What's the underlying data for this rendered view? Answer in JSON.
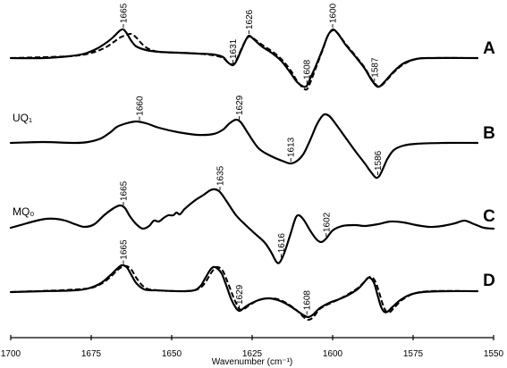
{
  "chart_data": {
    "type": "line",
    "xlabel": "Wavenumber (cm⁻¹)",
    "xlim": [
      1700,
      1550
    ],
    "xticks": [
      1700,
      1675,
      1650,
      1625,
      1600,
      1575,
      1550
    ],
    "grid": false,
    "line_color": "#000000",
    "series": [
      {
        "name": "A",
        "solid": [
          [
            1700,
            0
          ],
          [
            1690,
            0
          ],
          [
            1682,
            0.2
          ],
          [
            1677,
            0.5
          ],
          [
            1673,
            1.1
          ],
          [
            1670,
            1.8
          ],
          [
            1668,
            2.4
          ],
          [
            1666,
            3.1
          ],
          [
            1665,
            3.2
          ],
          [
            1664,
            2.8
          ],
          [
            1662.5,
            1.9
          ],
          [
            1661,
            1.3
          ],
          [
            1658,
            0.9
          ],
          [
            1654,
            0.7
          ],
          [
            1648,
            0.6
          ],
          [
            1642,
            0.5
          ],
          [
            1637,
            0.4
          ],
          [
            1634,
            0.1
          ],
          [
            1632.5,
            -0.5
          ],
          [
            1631,
            -0.8
          ],
          [
            1630,
            -0.4
          ],
          [
            1628.5,
            0.8
          ],
          [
            1627,
            2.0
          ],
          [
            1626,
            2.5
          ],
          [
            1624.5,
            2.1
          ],
          [
            1622,
            1.3
          ],
          [
            1619,
            0.6
          ],
          [
            1616,
            -0.3
          ],
          [
            1613,
            -1.7
          ],
          [
            1611,
            -2.7
          ],
          [
            1609,
            -3.2
          ],
          [
            1608,
            -3.1
          ],
          [
            1607,
            -2.3
          ],
          [
            1605,
            -0.7
          ],
          [
            1603,
            1.1
          ],
          [
            1601.5,
            2.5
          ],
          [
            1600,
            3.2
          ],
          [
            1598.5,
            2.8
          ],
          [
            1596,
            1.5
          ],
          [
            1593,
            0.2
          ],
          [
            1590,
            -1.2
          ],
          [
            1588,
            -2.4
          ],
          [
            1586.5,
            -3.1
          ],
          [
            1585.5,
            -3.2
          ],
          [
            1584,
            -2.7
          ],
          [
            1581,
            -1.5
          ],
          [
            1578,
            -0.6
          ],
          [
            1574,
            -0.1
          ],
          [
            1570,
            0
          ],
          [
            1555,
            0
          ]
        ],
        "dashed": [
          [
            1700,
            0
          ],
          [
            1682,
            0.2
          ],
          [
            1677,
            0.4
          ],
          [
            1673,
            0.8
          ],
          [
            1670,
            1.3
          ],
          [
            1668,
            1.8
          ],
          [
            1666,
            2.3
          ],
          [
            1664,
            2.6
          ],
          [
            1662.5,
            2.7
          ],
          [
            1661,
            2.3
          ],
          [
            1659,
            1.5
          ],
          [
            1657,
            1.0
          ],
          [
            1654,
            0.7
          ],
          [
            1648,
            0.6
          ],
          [
            1642,
            0.5
          ],
          [
            1637,
            0.3
          ],
          [
            1634,
            0.0
          ],
          [
            1632.5,
            -0.5
          ],
          [
            1631,
            -0.7
          ],
          [
            1630,
            -0.3
          ],
          [
            1628.5,
            0.9
          ],
          [
            1627,
            2.0
          ],
          [
            1626,
            2.4
          ],
          [
            1625,
            2.3
          ],
          [
            1622,
            1.5
          ],
          [
            1619,
            0.8
          ],
          [
            1616,
            -0.1
          ],
          [
            1613,
            -1.4
          ],
          [
            1611,
            -2.6
          ],
          [
            1609,
            -3.4
          ],
          [
            1608,
            -3.5
          ],
          [
            1607,
            -2.8
          ],
          [
            1605,
            -0.9
          ],
          [
            1603,
            1.0
          ],
          [
            1601.5,
            2.5
          ],
          [
            1600,
            3.1
          ],
          [
            1598.5,
            2.8
          ],
          [
            1596,
            1.6
          ],
          [
            1593,
            0.3
          ],
          [
            1590,
            -1.1
          ],
          [
            1588,
            -2.3
          ],
          [
            1586.5,
            -3.0
          ],
          [
            1585.5,
            -3.2
          ],
          [
            1584,
            -2.8
          ],
          [
            1581,
            -1.6
          ],
          [
            1578,
            -0.7
          ],
          [
            1574,
            -0.1
          ],
          [
            1570,
            0
          ],
          [
            1555,
            0
          ]
        ],
        "peak_labels": [
          1665,
          1631,
          1626,
          1608,
          1600,
          1587
        ]
      },
      {
        "name": "B",
        "sample_label": "UQ₁",
        "solid": [
          [
            1700,
            0
          ],
          [
            1690,
            0.1
          ],
          [
            1680,
            0
          ],
          [
            1676,
            0.1
          ],
          [
            1672,
            0.5
          ],
          [
            1669,
            1.2
          ],
          [
            1667,
            1.8
          ],
          [
            1664,
            2.2
          ],
          [
            1661,
            2.4
          ],
          [
            1658,
            2.2
          ],
          [
            1654,
            1.7
          ],
          [
            1648,
            1.2
          ],
          [
            1642,
            0.9
          ],
          [
            1637,
            1.0
          ],
          [
            1634,
            1.5
          ],
          [
            1632,
            2.2
          ],
          [
            1630,
            2.6
          ],
          [
            1628.5,
            2.3
          ],
          [
            1626.5,
            1.2
          ],
          [
            1623,
            -0.6
          ],
          [
            1619,
            -1.5
          ],
          [
            1615,
            -2.1
          ],
          [
            1613,
            -2.3
          ],
          [
            1611,
            -2.0
          ],
          [
            1609,
            -1.2
          ],
          [
            1607,
            0.3
          ],
          [
            1605,
            2.0
          ],
          [
            1603.5,
            2.9
          ],
          [
            1602.5,
            3.2
          ],
          [
            1601,
            3.0
          ],
          [
            1599,
            2.1
          ],
          [
            1596,
            0.6
          ],
          [
            1593,
            -0.9
          ],
          [
            1590,
            -2.3
          ],
          [
            1588,
            -3.3
          ],
          [
            1586.5,
            -3.9
          ],
          [
            1585.5,
            -3.7
          ],
          [
            1584.5,
            -3.0
          ],
          [
            1583,
            -1.8
          ],
          [
            1581,
            -0.8
          ],
          [
            1578,
            -0.3
          ],
          [
            1574,
            -0.1
          ],
          [
            1565,
            0
          ],
          [
            1555,
            0
          ]
        ],
        "peak_labels": [
          1660,
          1629,
          1613,
          1586
        ]
      },
      {
        "name": "C",
        "sample_label": "MQ₀",
        "solid": [
          [
            1700,
            -0.2
          ],
          [
            1697,
            0.1
          ],
          [
            1693,
            0.5
          ],
          [
            1689,
            0.8
          ],
          [
            1686,
            0.8
          ],
          [
            1683,
            0.6
          ],
          [
            1680,
            0.2
          ],
          [
            1677,
            -0.1
          ],
          [
            1674,
            0.2
          ],
          [
            1671,
            1.2
          ],
          [
            1668,
            2.0
          ],
          [
            1666,
            2.3
          ],
          [
            1664.5,
            2.0
          ],
          [
            1663,
            1.1
          ],
          [
            1661,
            0.2
          ],
          [
            1659,
            -0.3
          ],
          [
            1657,
            0.0
          ],
          [
            1655.5,
            0.6
          ],
          [
            1654,
            0.5
          ],
          [
            1652.5,
            0.9
          ],
          [
            1651,
            1.2
          ],
          [
            1649.5,
            1.2
          ],
          [
            1648.5,
            1.5
          ],
          [
            1647.5,
            1.3
          ],
          [
            1646,
            1.9
          ],
          [
            1643,
            2.8
          ],
          [
            1640,
            3.5
          ],
          [
            1638,
            4.0
          ],
          [
            1636.5,
            4.1
          ],
          [
            1635,
            3.8
          ],
          [
            1633,
            2.8
          ],
          [
            1630,
            1.2
          ],
          [
            1627,
            0.1
          ],
          [
            1624,
            -0.9
          ],
          [
            1621,
            -1.9
          ],
          [
            1619,
            -3.0
          ],
          [
            1617.5,
            -4.0
          ],
          [
            1616.5,
            -4.1
          ],
          [
            1615,
            -3.0
          ],
          [
            1613,
            -0.8
          ],
          [
            1611.5,
            0.9
          ],
          [
            1610.5,
            1.2
          ],
          [
            1609,
            0.7
          ],
          [
            1607,
            -0.5
          ],
          [
            1605,
            -1.5
          ],
          [
            1603.5,
            -1.8
          ],
          [
            1602,
            -1.4
          ],
          [
            1600,
            -0.5
          ],
          [
            1597,
            0.0
          ],
          [
            1593,
            0.1
          ],
          [
            1590,
            0.0
          ],
          [
            1586,
            0.2
          ],
          [
            1582,
            0.5
          ],
          [
            1578,
            0.4
          ],
          [
            1574,
            0.1
          ],
          [
            1570,
            -0.1
          ],
          [
            1566,
            0.0
          ],
          [
            1562,
            0.3
          ],
          [
            1559,
            0.6
          ],
          [
            1556,
            0.2
          ],
          [
            1553,
            -0.2
          ],
          [
            1550,
            -0.3
          ]
        ],
        "peak_labels": [
          1665,
          1635,
          1616,
          1602
        ]
      },
      {
        "name": "D",
        "solid": [
          [
            1700,
            -0.2
          ],
          [
            1690,
            -0.1
          ],
          [
            1680,
            0.0
          ],
          [
            1676,
            0.2
          ],
          [
            1672,
            0.8
          ],
          [
            1669,
            1.7
          ],
          [
            1667,
            2.4
          ],
          [
            1665.5,
            2.8
          ],
          [
            1664,
            2.6
          ],
          [
            1662.5,
            1.7
          ],
          [
            1661,
            0.8
          ],
          [
            1658.5,
            0.1
          ],
          [
            1655,
            0.0
          ],
          [
            1648,
            -0.1
          ],
          [
            1643,
            0.0
          ],
          [
            1641,
            0.5
          ],
          [
            1639.5,
            1.4
          ],
          [
            1638,
            2.3
          ],
          [
            1637,
            2.6
          ],
          [
            1636,
            2.5
          ],
          [
            1634.5,
            1.9
          ],
          [
            1633,
            0.5
          ],
          [
            1631.5,
            -1.0
          ],
          [
            1630,
            -2.0
          ],
          [
            1629,
            -2.3
          ],
          [
            1628,
            -2.1
          ],
          [
            1626,
            -1.6
          ],
          [
            1623,
            -1.1
          ],
          [
            1620,
            -0.9
          ],
          [
            1617,
            -1.1
          ],
          [
            1614,
            -1.6
          ],
          [
            1611,
            -2.3
          ],
          [
            1609,
            -2.8
          ],
          [
            1607.5,
            -3.0
          ],
          [
            1606,
            -2.7
          ],
          [
            1604,
            -2.0
          ],
          [
            1601,
            -1.4
          ],
          [
            1598,
            -1.0
          ],
          [
            1595,
            -0.5
          ],
          [
            1592,
            0.2
          ],
          [
            1590,
            1.0
          ],
          [
            1589,
            1.4
          ],
          [
            1588,
            1.3
          ],
          [
            1587,
            0.7
          ],
          [
            1586,
            -0.6
          ],
          [
            1585,
            -1.8
          ],
          [
            1584,
            -2.4
          ],
          [
            1583,
            -2.4
          ],
          [
            1581.5,
            -1.9
          ],
          [
            1579,
            -1.1
          ],
          [
            1576,
            -0.5
          ],
          [
            1572,
            -0.2
          ],
          [
            1565,
            -0.1
          ],
          [
            1555,
            -0.1
          ]
        ],
        "dashed": [
          [
            1700,
            -0.2
          ],
          [
            1676,
            0.2
          ],
          [
            1672,
            0.7
          ],
          [
            1669,
            1.5
          ],
          [
            1667,
            2.2
          ],
          [
            1665.5,
            2.6
          ],
          [
            1664,
            2.7
          ],
          [
            1662.5,
            2.3
          ],
          [
            1661,
            1.4
          ],
          [
            1659,
            0.5
          ],
          [
            1657,
            0.1
          ],
          [
            1648,
            -0.1
          ],
          [
            1643,
            0.0
          ],
          [
            1641,
            0.3
          ],
          [
            1639.5,
            0.9
          ],
          [
            1638,
            1.8
          ],
          [
            1637,
            2.3
          ],
          [
            1636,
            2.6
          ],
          [
            1635,
            2.5
          ],
          [
            1634,
            2.1
          ],
          [
            1632.5,
            0.8
          ],
          [
            1631,
            -0.6
          ],
          [
            1629.5,
            -1.8
          ],
          [
            1628.5,
            -2.2
          ],
          [
            1627.5,
            -2.1
          ],
          [
            1626,
            -1.7
          ],
          [
            1623,
            -1.1
          ],
          [
            1620,
            -0.9
          ],
          [
            1617,
            -1.0
          ],
          [
            1614,
            -1.5
          ],
          [
            1611,
            -2.3
          ],
          [
            1609,
            -3.0
          ],
          [
            1607.5,
            -3.3
          ],
          [
            1606,
            -3.0
          ],
          [
            1604,
            -2.1
          ],
          [
            1601,
            -1.5
          ],
          [
            1598,
            -1.0
          ],
          [
            1595,
            -0.4
          ],
          [
            1592,
            0.3
          ],
          [
            1590,
            1.0
          ],
          [
            1588.5,
            1.5
          ],
          [
            1587.5,
            1.4
          ],
          [
            1586.5,
            0.8
          ],
          [
            1585.5,
            -0.3
          ],
          [
            1584.5,
            -1.5
          ],
          [
            1583.5,
            -2.3
          ],
          [
            1582.5,
            -2.5
          ],
          [
            1581,
            -2.0
          ],
          [
            1578.5,
            -1.1
          ],
          [
            1575,
            -0.4
          ],
          [
            1570,
            -0.1
          ],
          [
            1555,
            -0.1
          ]
        ],
        "peak_labels": [
          1665,
          1629,
          1608
        ]
      }
    ]
  }
}
